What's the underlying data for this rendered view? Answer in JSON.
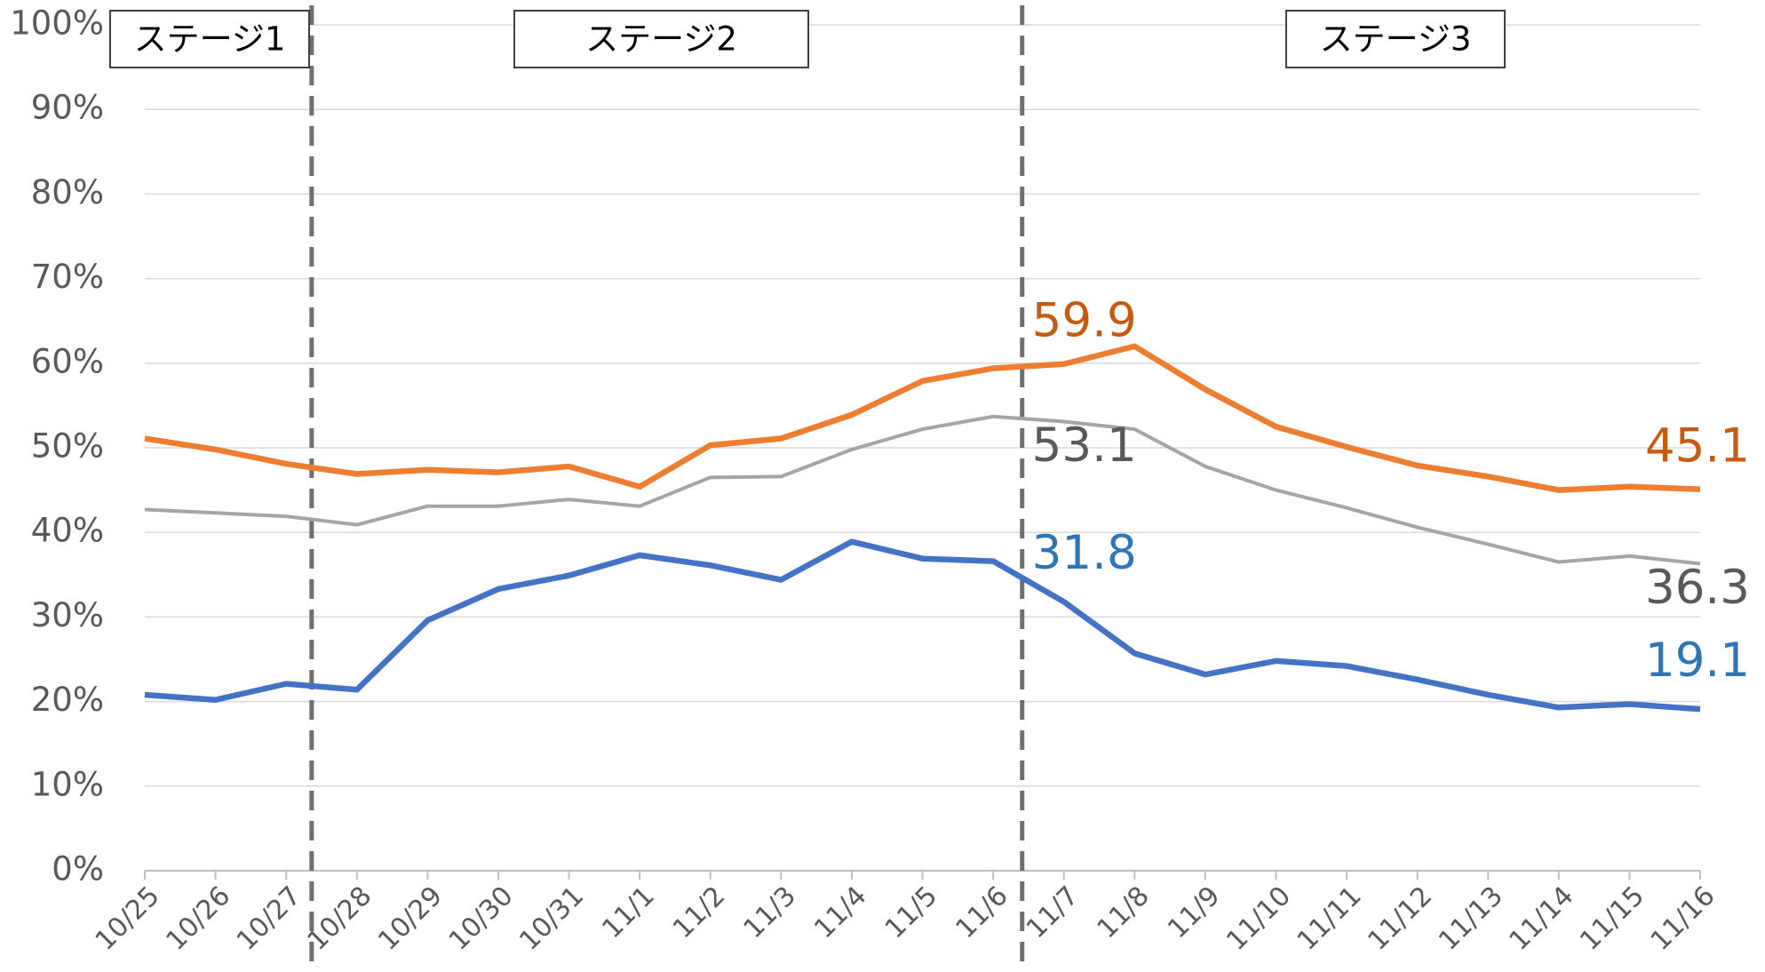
{
  "chart_data": {
    "type": "line",
    "categories": [
      "10/25",
      "10/26",
      "10/27",
      "10/28",
      "10/29",
      "10/30",
      "10/31",
      "11/1",
      "11/2",
      "11/3",
      "11/4",
      "11/5",
      "11/6",
      "11/7",
      "11/8",
      "11/9",
      "11/10",
      "11/11",
      "11/12",
      "11/13",
      "11/14",
      "11/15",
      "11/16"
    ],
    "series": [
      {
        "color": "#ED7D31",
        "label_color": "#C55A11",
        "values": [
          51.1,
          49.8,
          48.1,
          46.9,
          47.4,
          47.1,
          47.8,
          45.4,
          50.3,
          51.1,
          53.9,
          57.9,
          59.4,
          59.9,
          62.0,
          56.9,
          52.5,
          50.1,
          47.9,
          46.6,
          45.0,
          45.4,
          45.1
        ],
        "value_labels": [
          null,
          null,
          null,
          null,
          null,
          null,
          null,
          null,
          null,
          null,
          null,
          null,
          null,
          "59.9",
          null,
          null,
          null,
          null,
          null,
          null,
          null,
          null,
          "45.1"
        ]
      },
      {
        "color": "#A5A5A5",
        "label_color": "#595959",
        "values": [
          42.7,
          42.3,
          41.9,
          40.9,
          43.1,
          43.1,
          43.9,
          43.1,
          46.5,
          46.6,
          49.8,
          52.2,
          53.7,
          53.1,
          52.2,
          47.8,
          45.0,
          42.9,
          40.6,
          38.6,
          36.5,
          37.2,
          36.3
        ],
        "value_labels": [
          null,
          null,
          null,
          null,
          null,
          null,
          null,
          null,
          null,
          null,
          null,
          null,
          null,
          "53.1",
          null,
          null,
          null,
          null,
          null,
          null,
          null,
          null,
          "36.3"
        ]
      },
      {
        "color": "#4472C4",
        "label_color": "#2E75B6",
        "values": [
          20.8,
          20.2,
          22.1,
          21.4,
          29.6,
          33.3,
          34.9,
          37.3,
          36.1,
          34.4,
          38.9,
          36.9,
          36.6,
          31.8,
          25.7,
          23.2,
          24.8,
          24.2,
          22.6,
          20.8,
          19.3,
          19.7,
          19.1
        ],
        "value_labels": [
          null,
          null,
          null,
          null,
          null,
          null,
          null,
          null,
          null,
          null,
          null,
          null,
          null,
          "31.8",
          null,
          null,
          null,
          null,
          null,
          null,
          null,
          null,
          "19.1"
        ]
      }
    ],
    "ylim": [
      0,
      100
    ],
    "yticks": [
      {
        "value": 0,
        "label": "0%"
      },
      {
        "value": 10,
        "label": "10%"
      },
      {
        "value": 20,
        "label": "20%"
      },
      {
        "value": 30,
        "label": "30%"
      },
      {
        "value": 40,
        "label": "40%"
      },
      {
        "value": 50,
        "label": "50%"
      },
      {
        "value": 60,
        "label": "60%"
      },
      {
        "value": 70,
        "label": "70%"
      },
      {
        "value": 80,
        "label": "80%"
      },
      {
        "value": 90,
        "label": "90%"
      },
      {
        "value": 100,
        "label": "100%"
      }
    ],
    "grid": true,
    "annotations": [
      "ステージ1",
      "ステージ2",
      "ステージ3"
    ]
  }
}
